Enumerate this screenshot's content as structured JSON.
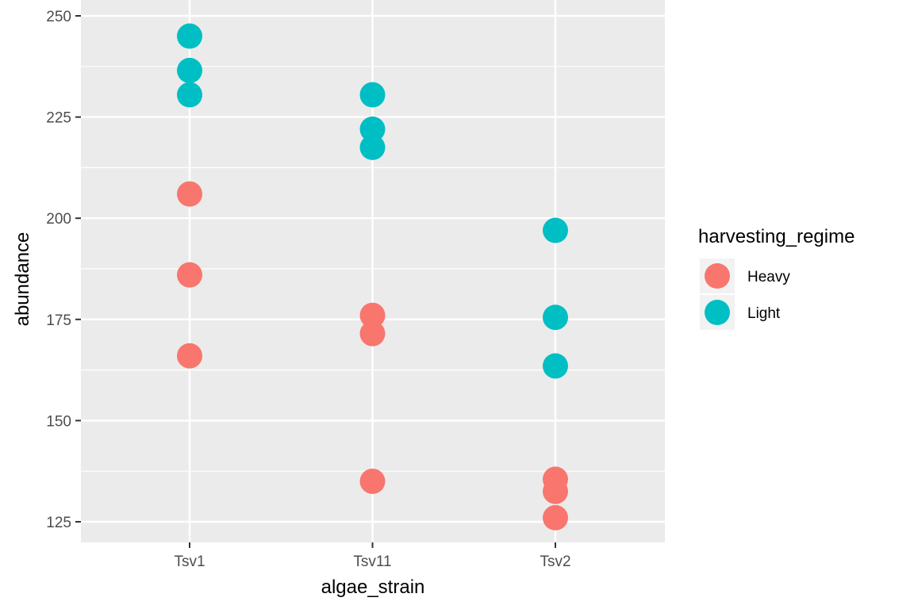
{
  "chart_data": {
    "type": "scatter",
    "title": "",
    "xlabel": "algae_strain",
    "ylabel": "abundance",
    "categories": [
      "Tsv1",
      "Tsv11",
      "Tsv2"
    ],
    "ylim": [
      120,
      252
    ],
    "yticks": [
      125,
      150,
      175,
      200,
      225,
      250
    ],
    "grid": true,
    "legend": {
      "title": "harvesting_regime",
      "placement": "right"
    },
    "series": [
      {
        "name": "Heavy",
        "color": "#F8766D",
        "points": [
          {
            "x": "Tsv1",
            "y": 206
          },
          {
            "x": "Tsv1",
            "y": 186
          },
          {
            "x": "Tsv1",
            "y": 166
          },
          {
            "x": "Tsv11",
            "y": 176
          },
          {
            "x": "Tsv11",
            "y": 171.5
          },
          {
            "x": "Tsv11",
            "y": 135
          },
          {
            "x": "Tsv2",
            "y": 135.5
          },
          {
            "x": "Tsv2",
            "y": 132.5
          },
          {
            "x": "Tsv2",
            "y": 126
          }
        ]
      },
      {
        "name": "Light",
        "color": "#00BFC4",
        "points": [
          {
            "x": "Tsv1",
            "y": 245
          },
          {
            "x": "Tsv1",
            "y": 236.5
          },
          {
            "x": "Tsv1",
            "y": 230.5
          },
          {
            "x": "Tsv11",
            "y": 230.5
          },
          {
            "x": "Tsv11",
            "y": 222
          },
          {
            "x": "Tsv11",
            "y": 217.5
          },
          {
            "x": "Tsv2",
            "y": 197
          },
          {
            "x": "Tsv2",
            "y": 175.5
          },
          {
            "x": "Tsv2",
            "y": 163.5
          }
        ]
      }
    ]
  }
}
